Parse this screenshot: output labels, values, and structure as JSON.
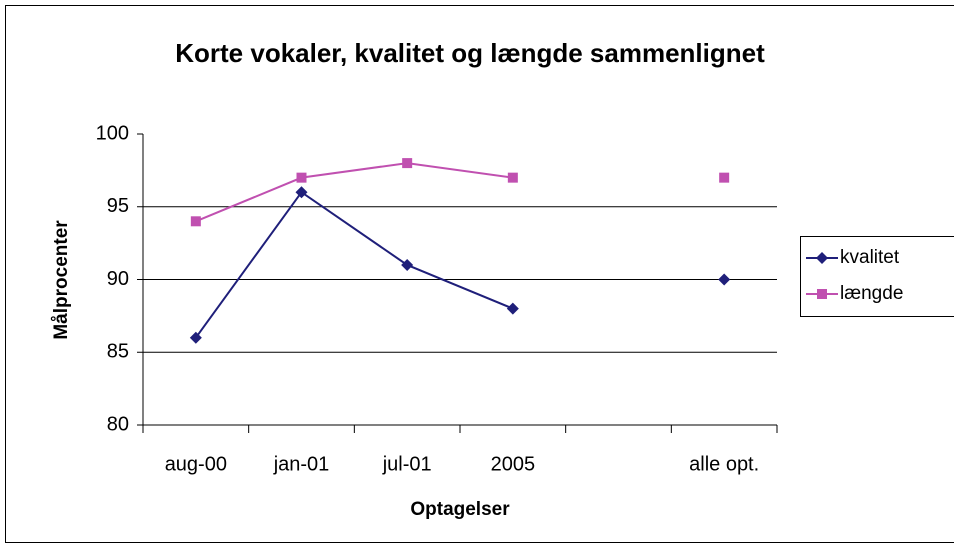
{
  "chart_data": {
    "type": "line",
    "title": "Korte vokaler, kvalitet og længde sammenlignet",
    "x_label": "Optagelser",
    "y_label": "Målprocenter",
    "categories": [
      "aug-00",
      "jan-01",
      "jul-01",
      "2005",
      null,
      "alle opt."
    ],
    "series": [
      {
        "name": "kvalitet",
        "color": "#1f1f7a",
        "marker": "diamond",
        "values": [
          86,
          96,
          91,
          88,
          null,
          90
        ]
      },
      {
        "name": "længde",
        "color": "#c050b0",
        "marker": "square",
        "values": [
          94,
          97,
          98,
          97,
          null,
          97
        ]
      }
    ],
    "ylim": [
      80,
      100
    ],
    "yticks": [
      80,
      85,
      90,
      95,
      100
    ],
    "grid": true,
    "legend": "right"
  }
}
